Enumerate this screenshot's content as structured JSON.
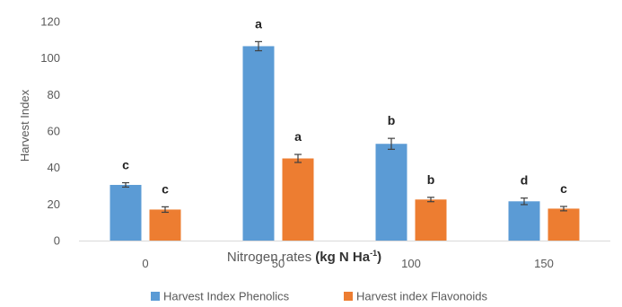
{
  "chart_data": {
    "type": "bar",
    "title": "",
    "ylabel": "Harvest Index",
    "xlabel": {
      "prefix": "Nitrogen rates ",
      "bold": "(kg N Ha",
      "sup": "-1",
      "suffix": ")"
    },
    "ylim": [
      0,
      120
    ],
    "yticks": [
      "0",
      "20",
      "40",
      "60",
      "80",
      "100",
      "120"
    ],
    "categories": [
      "0",
      "50",
      "100",
      "150"
    ],
    "grid": false,
    "legend_position": "bottom",
    "series": [
      {
        "name": "Harvest Index Phenolics",
        "color": "#5b9bd5",
        "values": [
          30.5,
          106.5,
          53,
          21.5
        ],
        "errors": [
          1.2,
          2.5,
          3.0,
          1.8
        ],
        "letters": [
          "c",
          "a",
          "b",
          "d"
        ]
      },
      {
        "name": "Harvest index Flavonoids",
        "color": "#ed7d31",
        "values": [
          17,
          45,
          22.5,
          17.5
        ],
        "errors": [
          1.5,
          2.2,
          1.2,
          1.2
        ],
        "letters": [
          "c",
          "a",
          "b",
          "c"
        ]
      }
    ]
  }
}
